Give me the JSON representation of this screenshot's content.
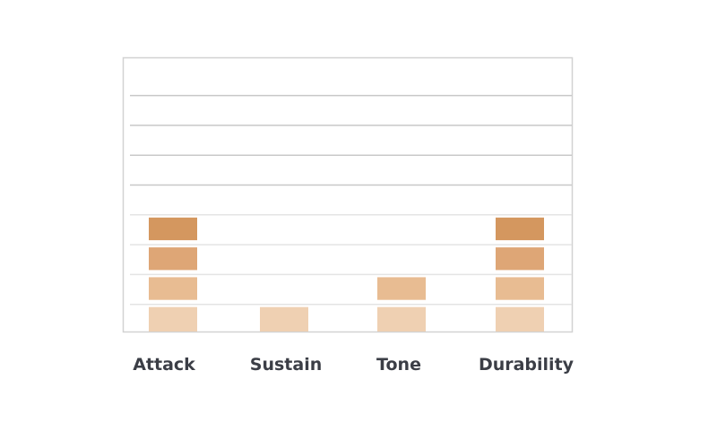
{
  "chart_data": {
    "type": "bar",
    "style": "stacked-blocks",
    "categories": [
      "Attack",
      "Sustain",
      "Tone",
      "Durability"
    ],
    "values": [
      4,
      1,
      2,
      4
    ],
    "ylim": [
      0,
      9
    ],
    "grid": true,
    "title": "",
    "xlabel": "",
    "ylabel": "",
    "colors": {
      "level_1": "#efd0b2",
      "level_2": "#e8bc92",
      "level_3": "#dea676",
      "level_4": "#d4975f",
      "grid": "#c8c8c8",
      "frame": "#d2d2d2",
      "label": "#3b3e46"
    }
  }
}
